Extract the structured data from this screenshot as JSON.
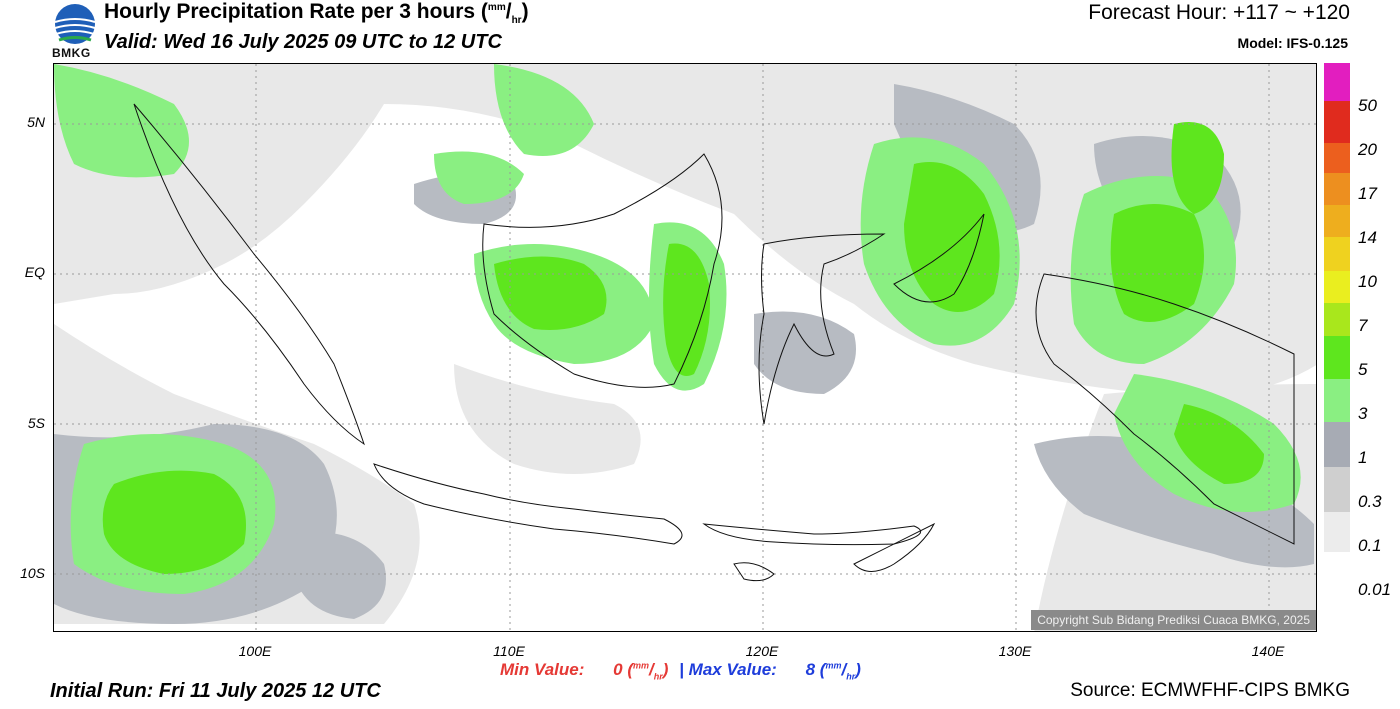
{
  "header": {
    "title": "Hourly Precipitation Rate per 3 hours",
    "title_unit_mm": "mm",
    "title_unit_hr": "hr",
    "valid": "Valid: Wed 16 July 2025 09 UTC to 12 UTC",
    "forecast_hour": "Forecast Hour: +117 ~ +120",
    "model": "Model: IFS-0.125",
    "logo_text": "BMKG"
  },
  "axes": {
    "y_labels": [
      "5N",
      "EQ",
      "5S",
      "10S"
    ],
    "x_labels": [
      "100E",
      "110E",
      "120E",
      "130E",
      "140E"
    ]
  },
  "colorscale": {
    "labels": [
      "50",
      "20",
      "17",
      "14",
      "10",
      "7",
      "5",
      "3",
      "1",
      "0.3",
      "0.1",
      "0.01"
    ],
    "colors": [
      "#e21ebf",
      "#e02b1e",
      "#ec5f1e",
      "#ed8f1f",
      "#eeae1e",
      "#efd21f",
      "#eaee1f",
      "#a9e71c",
      "#5ee61e",
      "#8aef82",
      "#a7abb4",
      "#cfcfcf",
      "#ececec"
    ]
  },
  "footer": {
    "min_label": "Min Value:",
    "min_value": "0",
    "max_label": "Max Value:",
    "max_value": "8",
    "separator": "|",
    "unit_mm": "mm",
    "unit_hr": "hr",
    "initial_run": "Initial Run: Fri 11 July 2025 12 UTC",
    "source": "Source: ECMWFHF-CIPS BMKG",
    "copyright": "Copyright Sub Bidang Prediksi Cuaca BMKG, 2025"
  }
}
